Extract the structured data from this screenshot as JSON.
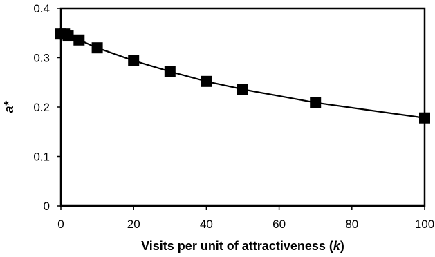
{
  "chart_data": {
    "type": "line",
    "x": [
      0,
      1,
      2,
      5,
      10,
      20,
      30,
      40,
      50,
      70,
      100
    ],
    "series": [
      {
        "values": [
          0.348,
          0.348,
          0.344,
          0.336,
          0.32,
          0.294,
          0.272,
          0.252,
          0.236,
          0.209,
          0.178
        ]
      }
    ],
    "xlim": [
      0,
      100
    ],
    "ylim": [
      0,
      0.4
    ],
    "xticks": [
      "0",
      "20",
      "40",
      "60",
      "80",
      "100"
    ],
    "yticks": [
      "0",
      "0.1",
      "0.2",
      "0.3",
      "0.4"
    ],
    "xlabel_main": "Visits per unit of attractiveness (",
    "xlabel_var": "k",
    "xlabel_tail": ")",
    "ylabel": "a*",
    "grid": false,
    "marker": "square",
    "line_color": "#000000",
    "marker_color": "#000000"
  }
}
